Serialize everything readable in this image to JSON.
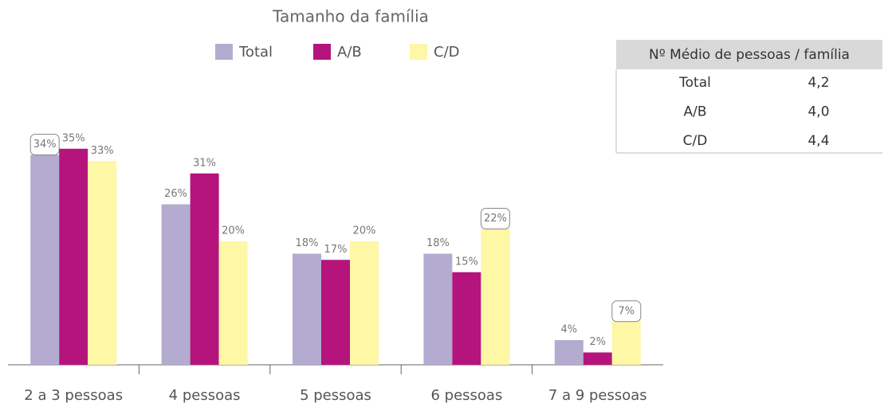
{
  "chart_data": {
    "type": "bar",
    "title": "Tamanho da família",
    "categories": [
      "2 a 3 pessoas",
      "4 pessoas",
      "5 pessoas",
      "6 pessoas",
      "7 a 9 pessoas"
    ],
    "series": [
      {
        "name": "Total",
        "color": "#b3acd0",
        "values": [
          34,
          26,
          18,
          18,
          4
        ],
        "value_labels": [
          "34%",
          "26%",
          "18%",
          "18%",
          "4%"
        ],
        "boxed_labels": [
          0
        ]
      },
      {
        "name": "A/B",
        "color": "#b5147c",
        "values": [
          35,
          31,
          17,
          15,
          2
        ],
        "value_labels": [
          "35%",
          "31%",
          "17%",
          "15%",
          "2%"
        ],
        "boxed_labels": []
      },
      {
        "name": "C/D",
        "color": "#fdf7a6",
        "values": [
          33,
          20,
          20,
          22,
          7
        ],
        "value_labels": [
          "33%",
          "20%",
          "20%",
          "22%",
          "7%"
        ],
        "boxed_labels": [
          3,
          4
        ]
      }
    ],
    "ylim": [
      0,
      40
    ],
    "legend": "top"
  },
  "table": {
    "header": "Nº Médio de pessoas / família",
    "rows": [
      [
        "Total",
        "4,2"
      ],
      [
        "A/B",
        "4,0"
      ],
      [
        "C/D",
        "4,4"
      ]
    ]
  }
}
